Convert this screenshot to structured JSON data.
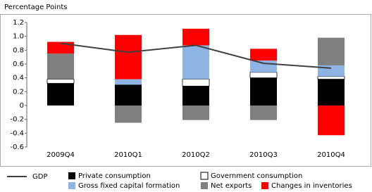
{
  "chart_data": {
    "type": "bar",
    "stacked": true,
    "ylabel": "Percentage Points",
    "categories": [
      "2009Q4",
      "2010Q1",
      "2010Q2",
      "2010Q3",
      "2010Q4"
    ],
    "ylim": [
      -0.6,
      1.2
    ],
    "yticks": [
      -0.6,
      -0.4,
      -0.2,
      0,
      0.2,
      0.4,
      0.6,
      0.8,
      {
        "value": 1,
        "label": "1.0"
      },
      1.2
    ],
    "series": [
      {
        "name": "Private consumption",
        "color": "#000000",
        "values": [
          0.32,
          0.3,
          0.28,
          0.4,
          0.38
        ]
      },
      {
        "name": "Government consumption",
        "color": "#ffffff",
        "values": [
          0.06,
          0,
          0.1,
          0.08,
          0.04
        ]
      },
      {
        "name": "Gross fixed capital formation",
        "color": "#8db4e2",
        "values": [
          0,
          0.08,
          0.49,
          0.17,
          0.16
        ]
      },
      {
        "name": "Net exports",
        "color": "#808080",
        "values": [
          0.37,
          -0.25,
          -0.21,
          -0.21,
          0.4
        ]
      },
      {
        "name": "Changes in inventories",
        "color": "#ff0000",
        "values": [
          0.17,
          0.64,
          0.24,
          0.17,
          -0.43
        ]
      },
      {
        "name": "GDP",
        "color": "#404040",
        "type": "line",
        "values": [
          0.9,
          0.77,
          0.87,
          0.61,
          0.54
        ]
      }
    ]
  }
}
